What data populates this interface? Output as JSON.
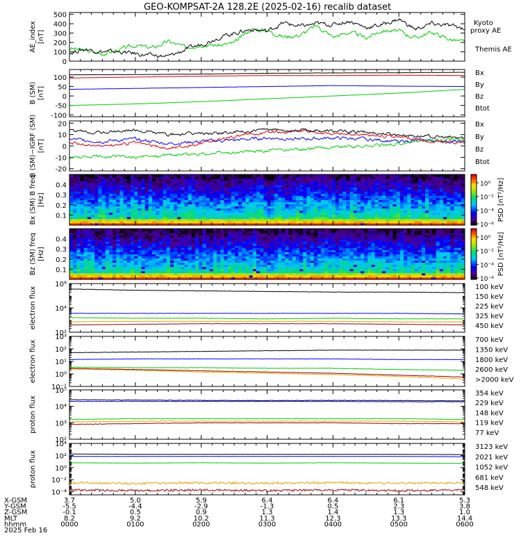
{
  "title": "GEO-KOMPSAT-2A 128.2E (2025-02-16) recalib dataset",
  "colors": {
    "black": "#000000",
    "blue": "#0000ff",
    "green": "#00cc00",
    "red": "#dd0000",
    "orange": "#e6a000",
    "darkred": "#990000"
  },
  "chart_data": [
    {
      "type": "line",
      "ylabel": "AE_index [nT]",
      "ylim": [
        0,
        520
      ],
      "yticks": [
        "0",
        "100",
        "200",
        "300",
        "400",
        "500"
      ],
      "legend": [
        "Kyoto",
        "proxy AE",
        "Themis AE"
      ],
      "series": [
        {
          "name": "Kyoto proxy AE",
          "color": "#00cc00",
          "x": [
            0,
            0.25,
            0.5,
            0.75,
            1,
            1.25,
            1.5,
            1.75,
            2,
            2.25,
            2.5,
            2.75,
            3,
            3.25,
            3.5,
            3.75,
            4,
            4.25,
            4.5,
            4.75,
            5,
            5.25,
            5.5,
            5.75,
            6
          ],
          "values": [
            140,
            110,
            80,
            120,
            170,
            140,
            210,
            150,
            180,
            170,
            190,
            340,
            330,
            260,
            280,
            380,
            260,
            310,
            250,
            330,
            320,
            250,
            310,
            240,
            200
          ]
        },
        {
          "name": "Themis AE",
          "color": "#000000",
          "x": [
            0,
            0.25,
            0.5,
            0.75,
            1,
            1.25,
            1.5,
            1.75,
            2,
            2.25,
            2.5,
            2.75,
            3,
            3.25,
            3.5,
            3.75,
            4,
            4.25,
            4.5,
            4.75,
            5,
            5.25,
            5.5,
            5.75,
            6
          ],
          "values": [
            90,
            130,
            100,
            100,
            80,
            60,
            50,
            120,
            180,
            250,
            300,
            340,
            320,
            410,
            370,
            400,
            390,
            430,
            360,
            390,
            450,
            340,
            400,
            380,
            350
          ]
        }
      ]
    },
    {
      "type": "line",
      "ylabel": "B (SM) [nT]",
      "ylim": [
        -110,
        140
      ],
      "yticks": [
        "-100",
        "-50",
        "0",
        "50",
        "100"
      ],
      "legend": [
        "Bx",
        "By",
        "Bz",
        "Btot"
      ],
      "series": [
        {
          "name": "Bx",
          "color": "#0000ff",
          "x": [
            0,
            1,
            2,
            3,
            4,
            5,
            6
          ],
          "values": [
            35,
            40,
            45,
            50,
            55,
            52,
            50
          ]
        },
        {
          "name": "By",
          "color": "#00cc00",
          "x": [
            0,
            1,
            2,
            3,
            4,
            5,
            6
          ],
          "values": [
            -50,
            -42,
            -30,
            -15,
            0,
            15,
            35
          ]
        },
        {
          "name": "Bz",
          "color": "#dd0000",
          "x": [
            0,
            1,
            2,
            3,
            4,
            5,
            6
          ],
          "values": [
            95,
            100,
            105,
            108,
            108,
            110,
            108
          ]
        },
        {
          "name": "Btot",
          "color": "#000000",
          "x": [
            0,
            1,
            2,
            3,
            4,
            5,
            6
          ],
          "values": [
            112,
            113,
            116,
            120,
            122,
            123,
            125
          ]
        }
      ]
    },
    {
      "type": "line",
      "ylabel": "B (SM)−IGRF (SM) [nT]",
      "ylim": [
        -22,
        22
      ],
      "yticks": [
        "-20",
        "-10",
        "0",
        "10",
        "20"
      ],
      "legend": [
        "Bx",
        "By",
        "Bz",
        "Btot"
      ],
      "series": [
        {
          "name": "Bx",
          "color": "#0000ff",
          "x": [
            0,
            0.5,
            1,
            1.5,
            2,
            2.5,
            3,
            3.5,
            4,
            4.5,
            5,
            5.5,
            6
          ],
          "values": [
            6,
            4,
            6,
            2,
            4,
            5,
            7,
            6,
            7,
            6,
            4,
            5,
            3
          ]
        },
        {
          "name": "By",
          "color": "#00cc00",
          "x": [
            0,
            0.5,
            1,
            1.5,
            2,
            2.5,
            3,
            3.5,
            4,
            4.5,
            5,
            5.5,
            6
          ],
          "values": [
            -11,
            -9,
            -10,
            -8,
            -7,
            -6,
            -4,
            -3,
            -1,
            0,
            2,
            5,
            6
          ]
        },
        {
          "name": "Bz",
          "color": "#dd0000",
          "x": [
            0,
            0.5,
            1,
            1.5,
            2,
            2.5,
            3,
            3.5,
            4,
            4.5,
            5,
            5.5,
            6
          ],
          "values": [
            3,
            0,
            3,
            -2,
            2,
            8,
            12,
            13,
            11,
            10,
            8,
            4,
            3
          ]
        },
        {
          "name": "Btot",
          "color": "#000000",
          "x": [
            0,
            0.5,
            1,
            1.5,
            2,
            2.5,
            3,
            3.5,
            4,
            4.5,
            5,
            5.5,
            6
          ],
          "values": [
            13,
            12,
            14,
            10,
            11,
            12,
            14,
            14,
            13,
            12,
            10,
            8,
            7
          ]
        }
      ]
    },
    {
      "type": "heatmap",
      "ylabel": "Bx (SM) B freq [Hz]",
      "ylim": [
        0,
        0.5
      ],
      "yticks": [
        "0.1",
        "0.2",
        "0.3",
        "0.4"
      ],
      "colorbar_label": "PSD [nT²/Hz]",
      "colorbar_ticks": [
        "10⁰",
        "10⁻²",
        "10⁻⁴",
        "10⁻⁶"
      ]
    },
    {
      "type": "heatmap",
      "ylabel": "Bz (SM) freq [Hz]",
      "ylim": [
        0,
        0.5
      ],
      "yticks": [
        "0.1",
        "0.2",
        "0.3",
        "0.4"
      ],
      "colorbar_label": "PSD [nT²/Hz]",
      "colorbar_ticks": [
        "10⁰",
        "10⁻²",
        "10⁻⁴",
        "10⁻⁶"
      ]
    },
    {
      "type": "line",
      "scale": "log",
      "ylabel": "electron flux",
      "ylim_exp": [
        2,
        6
      ],
      "yticks": [
        "10²",
        "10⁴",
        "10⁶"
      ],
      "legend": [
        "100 keV",
        "150 keV",
        "225 keV",
        "325 keV",
        "450 keV"
      ],
      "series": [
        {
          "name": "100 keV",
          "color": "#000000",
          "log_values": [
            5.55,
            5.45,
            5.4,
            5.35,
            5.3,
            5.3,
            5.25
          ]
        },
        {
          "name": "150 keV",
          "color": "#0000ff",
          "log_values": [
            3.55,
            3.55,
            3.55,
            3.55,
            3.55,
            3.55,
            3.5
          ]
        },
        {
          "name": "225 keV",
          "color": "#00cc00",
          "log_values": [
            3.2,
            3.15,
            3.15,
            3.1,
            3.15,
            3.1,
            3.1
          ]
        },
        {
          "name": "325 keV",
          "color": "#e6a000",
          "log_values": [
            2.85,
            2.9,
            2.9,
            2.9,
            2.9,
            2.85,
            2.85
          ]
        },
        {
          "name": "450 keV",
          "color": "#990000",
          "log_values": [
            2.6,
            2.65,
            2.7,
            2.7,
            2.7,
            2.65,
            2.6
          ]
        }
      ]
    },
    {
      "type": "line",
      "scale": "log",
      "ylabel": "electron flux",
      "ylim_exp": [
        -1,
        3
      ],
      "yticks": [
        "10⁻¹",
        "10⁰",
        "10¹",
        "10²",
        "10³"
      ],
      "legend": [
        "700 keV",
        "1350 keV",
        "1800 keV",
        "2600 keV",
        ">2000 keV"
      ],
      "series": [
        {
          "name": "700 keV",
          "color": "#000000",
          "log_values": [
            1.7,
            1.75,
            1.8,
            1.85,
            1.9,
            1.9,
            1.9
          ]
        },
        {
          "name": "1350 keV",
          "color": "#0000ff",
          "log_values": [
            1.15,
            1.2,
            1.2,
            1.2,
            1.2,
            1.15,
            1.15
          ]
        },
        {
          "name": "1800 keV",
          "color": "#00cc00",
          "log_values": [
            0.55,
            0.5,
            0.5,
            0.45,
            0.45,
            0.35,
            0.3
          ]
        },
        {
          "name": "2600 keV",
          "color": "#e6a000",
          "log_values": [
            0.4,
            0.3,
            0.15,
            0.05,
            -0.05,
            -0.2,
            -0.4
          ]
        },
        {
          "name": ">2000 keV",
          "color": "#990000",
          "log_values": [
            0.45,
            0.35,
            0.25,
            0.15,
            0.05,
            -0.1,
            -0.25
          ]
        }
      ]
    },
    {
      "type": "line",
      "scale": "log",
      "ylabel": "proton flux",
      "ylim_exp": [
        2,
        5
      ],
      "yticks": [
        "10²",
        "10³",
        "10⁴",
        "10⁵"
      ],
      "legend": [
        "354 keV",
        "229 keV",
        "148 keV",
        "119 keV",
        "77 keV"
      ],
      "series": [
        {
          "name": "354 keV",
          "color": "#990000",
          "log_values": [
            2.9,
            2.95,
            3.0,
            3.0,
            3.0,
            2.95,
            2.95
          ]
        },
        {
          "name": "229 keV",
          "color": "#e6a000",
          "log_values": [
            3.05,
            3.1,
            3.1,
            3.1,
            3.1,
            3.1,
            3.05
          ]
        },
        {
          "name": "148 keV",
          "color": "#00cc00",
          "log_values": [
            3.2,
            3.25,
            3.25,
            3.25,
            3.25,
            3.25,
            3.2
          ]
        },
        {
          "name": "119 keV",
          "color": "#0000ff",
          "log_values": [
            4.3,
            4.3,
            4.3,
            4.3,
            4.3,
            4.28,
            4.28
          ]
        },
        {
          "name": "77 keV",
          "color": "#000000",
          "log_values": [
            4.4,
            4.38,
            4.36,
            4.35,
            4.36,
            4.35,
            4.33
          ]
        }
      ]
    },
    {
      "type": "line",
      "scale": "log",
      "ylabel": "proton flux",
      "ylim_exp": [
        -4.5,
        4
      ],
      "yticks": [
        "10⁻⁴",
        "10⁻²",
        "10⁰",
        "10²",
        "10⁴"
      ],
      "legend": [
        "3123 keV",
        "2021 keV",
        "1052 keV",
        "681 keV",
        "548 keV"
      ],
      "series": [
        {
          "name": "3123 keV",
          "color": "#990000",
          "log_values": [
            -3.7,
            -3.8,
            -3.7,
            -3.8,
            -3.7,
            -3.8,
            -3.7
          ]
        },
        {
          "name": "2021 keV",
          "color": "#e6a000",
          "log_values": [
            -2.5,
            -2.6,
            -2.5,
            -2.6,
            -2.5,
            -2.6,
            -2.5
          ]
        },
        {
          "name": "1052 keV",
          "color": "#00cc00",
          "log_values": [
            0.8,
            0.75,
            0.8,
            0.75,
            0.8,
            0.75,
            0.7
          ]
        },
        {
          "name": "681 keV",
          "color": "#0000ff",
          "log_values": [
            1.85,
            1.85,
            1.85,
            1.85,
            1.85,
            1.85,
            1.8
          ]
        },
        {
          "name": "548 keV",
          "color": "#000000",
          "log_values": [
            2.25,
            2.2,
            2.2,
            2.2,
            2.2,
            2.2,
            2.15
          ]
        }
      ]
    }
  ],
  "ephemeris": {
    "labels": [
      "X-GSM",
      "Y-GSM",
      "Z-GSM",
      "MLT",
      "hhmm",
      "2025 Feb 16"
    ],
    "rows": [
      [
        "3.7",
        "5.0",
        "5.9",
        "6.4",
        "6.4",
        "6.1",
        "5.3"
      ],
      [
        "-5.5",
        "-4.4",
        "-2.9",
        "-1.3",
        "0.5",
        "2.3",
        "3.8"
      ],
      [
        "-0.1",
        "0.5",
        "0.9",
        "1.3",
        "1.4",
        "1.3",
        "1.0"
      ],
      [
        "8.2",
        "9.2",
        "10.2",
        "11.3",
        "12.3",
        "13.3",
        "14.4"
      ],
      [
        "0000",
        "0100",
        "0200",
        "0300",
        "0400",
        "0500",
        "0600"
      ]
    ]
  }
}
